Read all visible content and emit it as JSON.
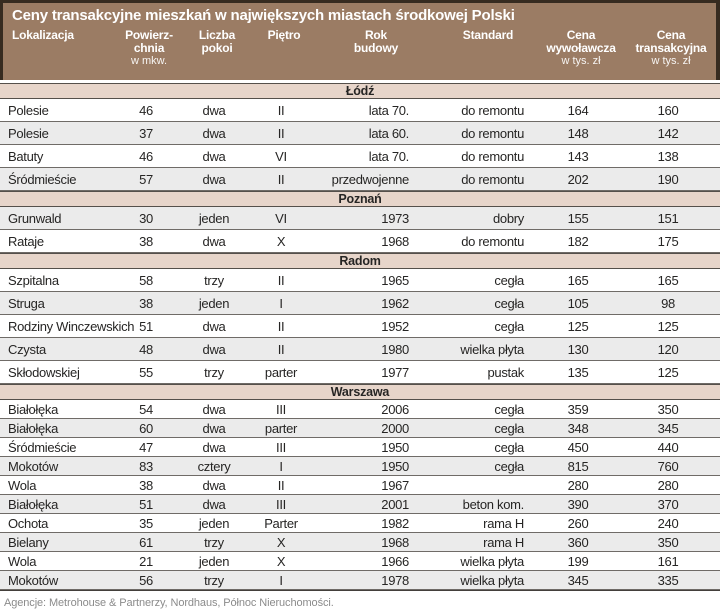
{
  "chart_data": {
    "type": "table",
    "title": "Ceny transakcyjne mieszkań w największych miastach środkowej Polski",
    "columns": [
      {
        "lines": [
          "Lokalizacja"
        ],
        "sub": ""
      },
      {
        "lines": [
          "Powierz-",
          "chnia"
        ],
        "sub": "w mkw."
      },
      {
        "lines": [
          "Liczba",
          "pokoi"
        ],
        "sub": ""
      },
      {
        "lines": [
          "Piętro"
        ],
        "sub": ""
      },
      {
        "lines": [
          "Rok",
          "budowy"
        ],
        "sub": ""
      },
      {
        "lines": [
          "Standard"
        ],
        "sub": ""
      },
      {
        "lines": [
          "Cena",
          "wywoławcza"
        ],
        "sub": "w tys. zł"
      },
      {
        "lines": [
          "Cena",
          "transakcyjna"
        ],
        "sub": "w tys. zł"
      }
    ],
    "sections": [
      {
        "name": "Łódź",
        "first_shaded": false,
        "rows": [
          [
            "Polesie",
            "46",
            "dwa",
            "II",
            "lata 70.",
            "do remontu",
            "164",
            "160"
          ],
          [
            "Polesie",
            "37",
            "dwa",
            "II",
            "lata 60.",
            "do remontu",
            "148",
            "142"
          ],
          [
            "Batuty",
            "46",
            "dwa",
            "VI",
            "lata 70.",
            "do remontu",
            "143",
            "138"
          ],
          [
            "Śródmieście",
            "57",
            "dwa",
            "II",
            "przedwojenne",
            "do remontu",
            "202",
            "190"
          ]
        ]
      },
      {
        "name": "Poznań",
        "first_shaded": true,
        "rows": [
          [
            "Grunwald",
            "30",
            "jeden",
            "VI",
            "1973",
            "dobry",
            "155",
            "151"
          ],
          [
            "Rataje",
            "38",
            "dwa",
            "X",
            "1968",
            "do remontu",
            "182",
            "175"
          ]
        ]
      },
      {
        "name": "Radom",
        "first_shaded": false,
        "rows": [
          [
            "Szpitalna",
            "58",
            "trzy",
            "II",
            "1965",
            "cegła",
            "165",
            "165"
          ],
          [
            "Struga",
            "38",
            "jeden",
            "I",
            "1962",
            "cegła",
            "105",
            "98"
          ],
          [
            "Rodziny Winczewskich",
            "51",
            "dwa",
            "II",
            "1952",
            "cegła",
            "125",
            "125"
          ],
          [
            "Czysta",
            "48",
            "dwa",
            "II",
            "1980",
            "wielka płyta",
            "130",
            "120"
          ],
          [
            "Skłodowskiej",
            "55",
            "trzy",
            "parter",
            "1977",
            "pustak",
            "135",
            "125"
          ]
        ]
      },
      {
        "name": "Warszawa",
        "first_shaded": false,
        "rows": [
          [
            "Białołęka",
            "54",
            "dwa",
            "III",
            "2006",
            "cegła",
            "359",
            "350"
          ],
          [
            "Białołęka",
            "60",
            "dwa",
            "parter",
            "2000",
            "cegła",
            "348",
            "345"
          ],
          [
            "Śródmieście",
            "47",
            "dwa",
            "III",
            "1950",
            "cegła",
            "450",
            "440"
          ],
          [
            "Mokotów",
            "83",
            "cztery",
            "I",
            "1950",
            "cegła",
            "815",
            "760"
          ],
          [
            "Wola",
            "38",
            "dwa",
            "II",
            "1967",
            "",
            "280",
            "280"
          ],
          [
            "Białołęka",
            "51",
            "dwa",
            "III",
            "2001",
            "beton kom.",
            "390",
            "370"
          ],
          [
            "Ochota",
            "35",
            "jeden",
            "Parter",
            "1982",
            "rama H",
            "260",
            "240"
          ],
          [
            "Bielany",
            "61",
            "trzy",
            "X",
            "1968",
            "rama H",
            "360",
            "350"
          ],
          [
            "Wola",
            "21",
            "jeden",
            "X",
            "1966",
            "wielka płyta",
            "199",
            "161"
          ],
          [
            "Mokotów",
            "56",
            "trzy",
            "I",
            "1978",
            "wielka płyta",
            "345",
            "335"
          ]
        ]
      }
    ],
    "footer": "Agencje: Metrohouse & Partnerzy, Nordhaus, Północ Nieruchomości."
  },
  "colors": {
    "header_brown": "#9b7c64",
    "border_dark": "#362b20",
    "section_band": "#e7d5ca",
    "row_alt": "#ebebeb",
    "header_text": "#ffffff",
    "body_text": "#262524",
    "footer_text": "#8b8b8b"
  }
}
